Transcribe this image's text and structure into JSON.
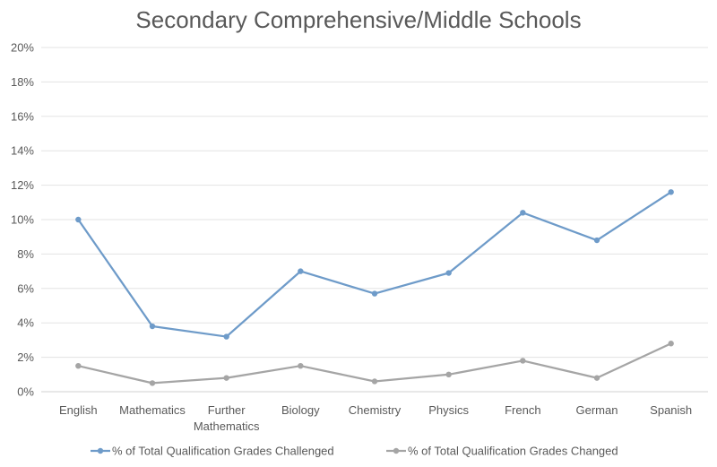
{
  "chart_data": {
    "type": "line",
    "title": "Secondary Comprehensive/Middle Schools",
    "xlabel": "",
    "ylabel": "",
    "categories": [
      [
        "English"
      ],
      [
        "Mathematics"
      ],
      [
        "Further",
        "Mathematics"
      ],
      [
        "Biology"
      ],
      [
        "Chemistry"
      ],
      [
        "Physics"
      ],
      [
        "French"
      ],
      [
        "German"
      ],
      [
        "Spanish"
      ]
    ],
    "y_ticks": [
      "0%",
      "2%",
      "4%",
      "6%",
      "8%",
      "10%",
      "12%",
      "14%",
      "16%",
      "18%",
      "20%"
    ],
    "ylim": [
      0,
      20
    ],
    "grid": true,
    "legend_position": "bottom",
    "series": [
      {
        "name": "% of Total Qualification Grades Challenged",
        "color": "#6e9bc9",
        "values": [
          10.0,
          3.8,
          3.2,
          7.0,
          5.7,
          6.9,
          10.4,
          8.8,
          11.6
        ]
      },
      {
        "name": "% of Total Qualification Grades Changed",
        "color": "#a5a5a5",
        "values": [
          1.5,
          0.5,
          0.8,
          1.5,
          0.6,
          1.0,
          1.8,
          0.8,
          2.8
        ]
      }
    ]
  }
}
